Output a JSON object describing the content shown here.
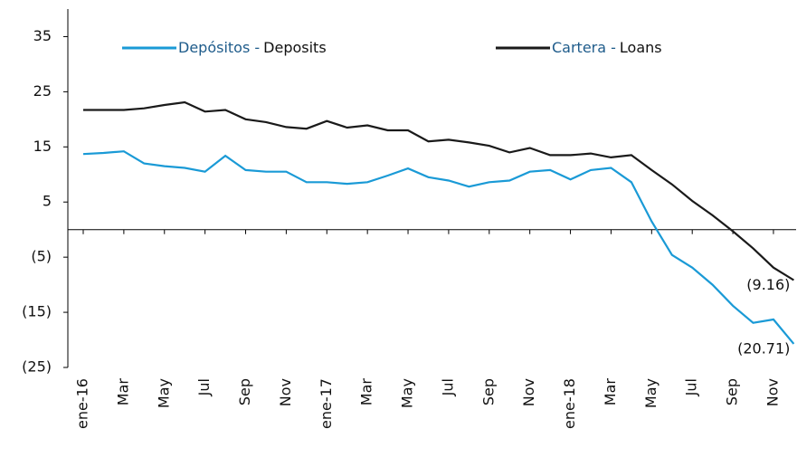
{
  "chart_data": {
    "type": "line",
    "categories": [
      "ene-16",
      null,
      "Mar",
      null,
      "May",
      null,
      "Jul",
      null,
      "Sep",
      null,
      "Nov",
      null,
      "ene-17",
      null,
      "Mar",
      null,
      "May",
      null,
      "Jul",
      null,
      "Sep",
      null,
      "Nov",
      null,
      "ene-18",
      null,
      "Mar",
      null,
      "May",
      null,
      "Jul",
      null,
      "Sep",
      null,
      "Nov",
      null
    ],
    "series": [
      {
        "name": "Depósitos -",
        "name_en": "Deposits",
        "color": "#1a9ad6",
        "legend_color": "#1f5c8b",
        "values": [
          13.7,
          13.9,
          14.2,
          12.0,
          11.5,
          11.2,
          10.5,
          13.4,
          10.8,
          10.5,
          10.5,
          8.6,
          8.6,
          8.3,
          8.6,
          9.8,
          11.1,
          9.5,
          8.9,
          7.8,
          8.6,
          8.9,
          10.5,
          10.8,
          9.1,
          10.8,
          11.2,
          8.6,
          1.5,
          -4.6,
          -6.9,
          -10.0,
          -13.8,
          -16.9,
          -16.3,
          -20.71
        ],
        "value_labels": [
          null,
          null,
          null,
          null,
          null,
          null,
          null,
          null,
          null,
          null,
          null,
          null,
          null,
          null,
          null,
          null,
          null,
          null,
          null,
          null,
          null,
          null,
          null,
          null,
          null,
          null,
          null,
          null,
          null,
          null,
          null,
          null,
          null,
          null,
          null,
          "(20.71)"
        ]
      },
      {
        "name": "Cartera -",
        "name_en": "Loans",
        "color": "#1a1a1a",
        "legend_color": "#1f5c8b",
        "values": [
          21.7,
          21.7,
          21.7,
          22.0,
          22.6,
          23.1,
          21.4,
          21.7,
          20.0,
          19.5,
          18.6,
          18.3,
          19.7,
          18.5,
          18.9,
          18.0,
          18.0,
          16.0,
          16.3,
          15.8,
          15.2,
          14.0,
          14.8,
          13.5,
          13.5,
          13.8,
          13.1,
          13.5,
          10.8,
          8.2,
          5.2,
          2.6,
          -0.3,
          -3.4,
          -6.9,
          -9.16
        ],
        "value_labels": [
          null,
          null,
          null,
          null,
          null,
          null,
          null,
          null,
          null,
          null,
          null,
          null,
          null,
          null,
          null,
          null,
          null,
          null,
          null,
          null,
          null,
          null,
          null,
          null,
          null,
          null,
          null,
          null,
          null,
          null,
          null,
          null,
          null,
          null,
          null,
          "(9.16)"
        ]
      }
    ],
    "ylim": [
      -25,
      40
    ],
    "yticks": [
      35,
      25,
      15,
      5,
      {
        "value": -5,
        "label": "(5)"
      },
      {
        "value": -15,
        "label": "(15)"
      },
      {
        "value": -25,
        "label": "(25)"
      }
    ]
  }
}
